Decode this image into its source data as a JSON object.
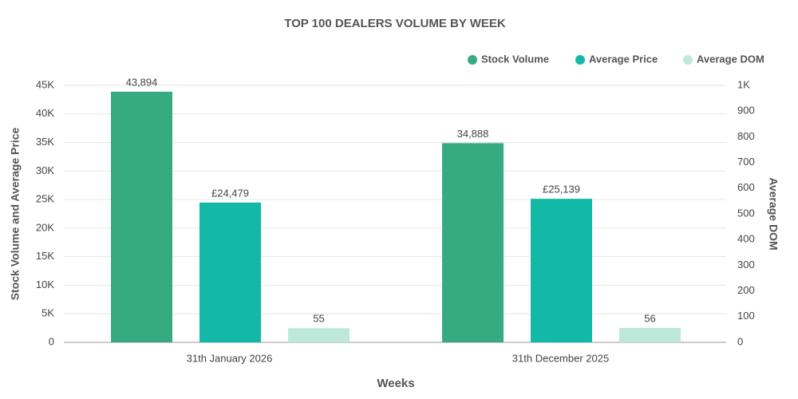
{
  "chart_data": {
    "type": "bar",
    "title": "TOP 100 DEALERS VOLUME BY WEEK",
    "x_label": "Weeks",
    "y_label": "Stock Volume and Average Price",
    "y2_label": "Average DOM",
    "categories": [
      "31th January 2026",
      "31th December 2025"
    ],
    "series": [
      {
        "name": "Stock Volume",
        "color": "#36ab82",
        "values": [
          43894,
          34888
        ],
        "value_labels": [
          "43,894",
          "34,888"
        ]
      },
      {
        "name": "Average Price",
        "color": "#14b8a6",
        "values": [
          24479,
          25139
        ],
        "value_labels": [
          "£24,479",
          "£25,139"
        ]
      },
      {
        "name": "Average DOM",
        "color": "#bde8da",
        "axis": "y2",
        "values": [
          55,
          56
        ],
        "value_labels": [
          "55",
          "56"
        ]
      }
    ],
    "ylim": [
      0,
      45000
    ],
    "yticks": [
      0,
      {
        "value": 5000,
        "label": "5K"
      },
      {
        "value": 10000,
        "label": "10K"
      },
      {
        "value": 15000,
        "label": "15K"
      },
      {
        "value": 20000,
        "label": "20K"
      },
      {
        "value": 25000,
        "label": "25K"
      },
      {
        "value": 30000,
        "label": "30K"
      },
      {
        "value": 35000,
        "label": "35K"
      },
      {
        "value": 40000,
        "label": "40K"
      },
      {
        "value": 45000,
        "label": "45K"
      }
    ],
    "y2lim": [
      0,
      1000
    ],
    "y2ticks": [
      0,
      100,
      200,
      300,
      400,
      500,
      600,
      700,
      800,
      900,
      {
        "value": 1000,
        "label": "1K"
      }
    ],
    "grid": true,
    "legend": "top-right"
  }
}
